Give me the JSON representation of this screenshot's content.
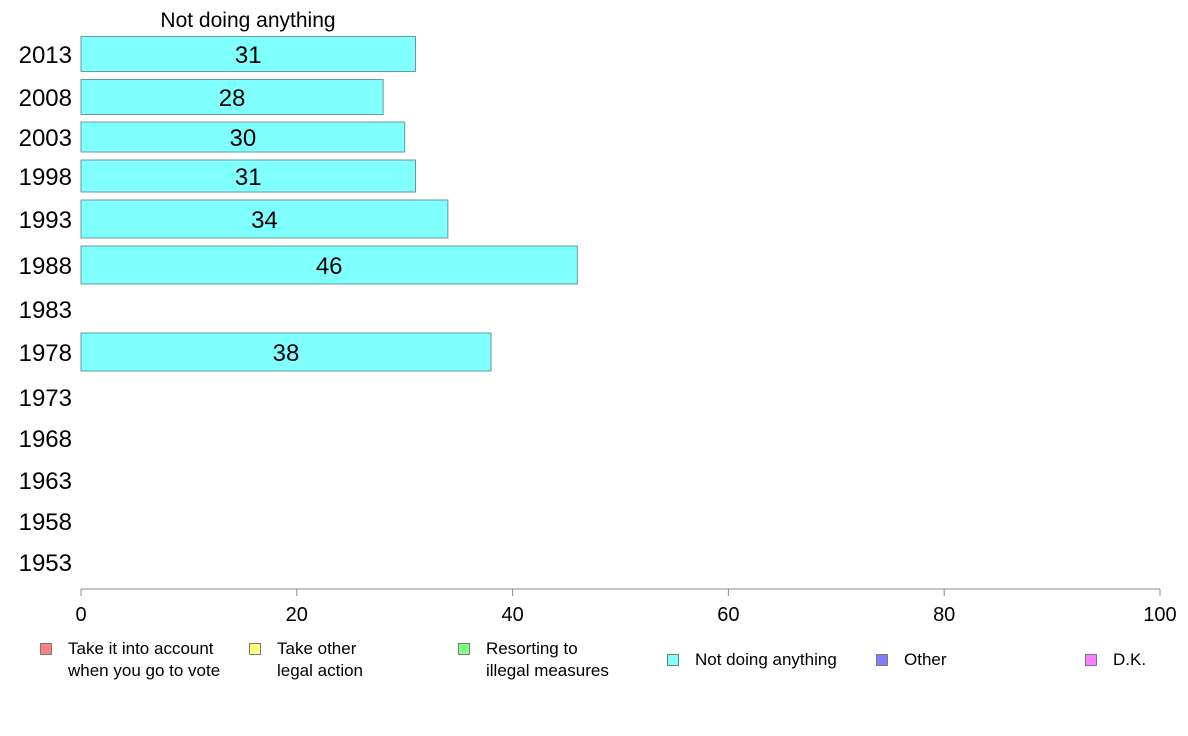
{
  "chart_data": {
    "type": "bar",
    "orientation": "horizontal",
    "title": "Not doing anything",
    "categories": [
      "2013",
      "2008",
      "2003",
      "1998",
      "1993",
      "1988",
      "1983",
      "1978",
      "1973",
      "1968",
      "1963",
      "1958",
      "1953"
    ],
    "values": [
      31,
      28,
      30,
      31,
      34,
      46,
      null,
      38,
      null,
      null,
      null,
      null,
      null
    ],
    "xlim": [
      0,
      100
    ],
    "xticks": [
      "0",
      "20",
      "40",
      "60",
      "80",
      "100"
    ],
    "bar_color": "#80ffff",
    "legend": [
      {
        "label": "Take it into account\nwhen you go to vote",
        "color": "#ff8080"
      },
      {
        "label": "Take other\nlegal action",
        "color": "#ffff80"
      },
      {
        "label": "Resorting to\nillegal measures",
        "color": "#80ff80"
      },
      {
        "label": "Not doing anything",
        "color": "#80ffff"
      },
      {
        "label": "Other",
        "color": "#8080ff"
      },
      {
        "label": "D.K.",
        "color": "#ff80ff"
      }
    ],
    "legend_position": "bottom"
  }
}
